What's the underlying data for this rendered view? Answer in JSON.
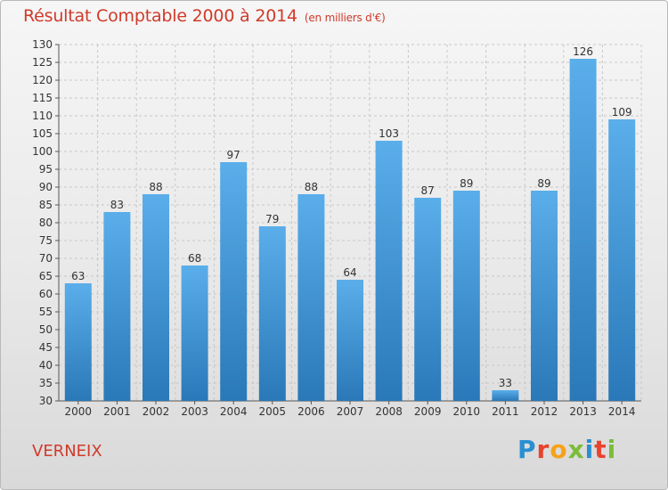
{
  "header": {
    "title": "Résultat Comptable 2000 à 2014",
    "unit": "(en milliers d'€)"
  },
  "footer": {
    "location": "VERNEIX",
    "logo": "Proxiti"
  },
  "colors": {
    "title": "#d03a2a",
    "bar_top": "#5aaeea",
    "bar_bottom": "#2a78b8",
    "logo": [
      "#2a8fd0",
      "#e8432d",
      "#f6a21a",
      "#7cbc3a",
      "#2a8fd0",
      "#e8432d",
      "#7cbc3a"
    ]
  },
  "chart_data": {
    "type": "bar",
    "title": "Résultat Comptable 2000 à 2014",
    "subtitle": "(en milliers d'€)",
    "xlabel": "",
    "ylabel": "",
    "categories": [
      "2000",
      "2001",
      "2002",
      "2003",
      "2004",
      "2005",
      "2006",
      "2007",
      "2008",
      "2009",
      "2010",
      "2011",
      "2012",
      "2013",
      "2014"
    ],
    "values": [
      63,
      83,
      88,
      68,
      97,
      79,
      88,
      64,
      103,
      87,
      89,
      33,
      89,
      126,
      109
    ],
    "ylim": [
      30,
      130
    ],
    "yticks": [
      30,
      35,
      40,
      45,
      50,
      55,
      60,
      65,
      70,
      75,
      80,
      85,
      90,
      95,
      100,
      105,
      110,
      115,
      120,
      125,
      130
    ],
    "grid": true,
    "legend": "none"
  }
}
